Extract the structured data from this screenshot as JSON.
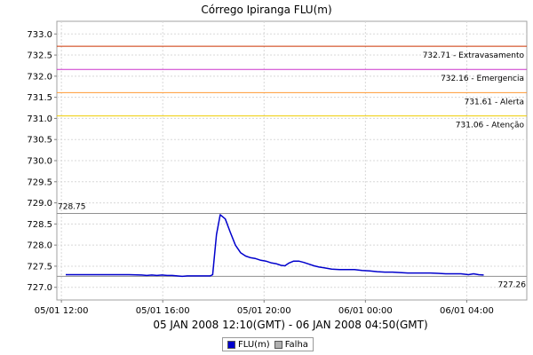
{
  "chart_data": {
    "type": "line",
    "title": "Córrego Ipiranga FLU(m)",
    "subtitle": "05 JAN 2008 12:10(GMT) - 06 JAN 2008 04:50(GMT)",
    "ylim": [
      726.7,
      733.3
    ],
    "y_ticks": [
      "727.0",
      "727.5",
      "728.0",
      "728.5",
      "729.0",
      "729.5",
      "730.0",
      "730.5",
      "731.0",
      "731.5",
      "732.0",
      "732.5",
      "733.0"
    ],
    "x_ticks": [
      {
        "hours": -0.17,
        "label": "05/01 12:00"
      },
      {
        "hours": 3.83,
        "label": "05/01 16:00"
      },
      {
        "hours": 7.83,
        "label": "05/01 20:00"
      },
      {
        "hours": 11.83,
        "label": "06/01 00:00"
      },
      {
        "hours": 15.83,
        "label": "06/01 04:00"
      }
    ],
    "x_unit": "hours after 05 JAN 2008 12:10 GMT",
    "thresholds": [
      {
        "value": 732.71,
        "label": "732.71 - Extravasamento",
        "color": "#cc3300"
      },
      {
        "value": 732.16,
        "label": "732.16 - Emergencia",
        "color": "#cc33cc"
      },
      {
        "value": 731.61,
        "label": "731.61 - Alerta",
        "color": "#ff9933"
      },
      {
        "value": 731.06,
        "label": "731.06 - Atenção",
        "color": "#eecc00"
      }
    ],
    "markers": [
      {
        "value": 728.75,
        "label": "728.75",
        "side": "left"
      },
      {
        "value": 727.26,
        "label": "727.26",
        "side": "right"
      }
    ],
    "series": [
      {
        "name": "FLU(m)",
        "color": "#0000cc",
        "points": [
          [
            0.0,
            727.3
          ],
          [
            0.5,
            727.3
          ],
          [
            1.0,
            727.3
          ],
          [
            1.5,
            727.3
          ],
          [
            2.0,
            727.3
          ],
          [
            2.5,
            727.3
          ],
          [
            3.0,
            727.29
          ],
          [
            3.2,
            727.28
          ],
          [
            3.4,
            727.29
          ],
          [
            3.6,
            727.28
          ],
          [
            3.8,
            727.29
          ],
          [
            4.0,
            727.28
          ],
          [
            4.2,
            727.28
          ],
          [
            4.4,
            727.27
          ],
          [
            4.6,
            727.26
          ],
          [
            4.8,
            727.27
          ],
          [
            5.0,
            727.27
          ],
          [
            5.2,
            727.27
          ],
          [
            5.5,
            727.27
          ],
          [
            5.7,
            727.27
          ],
          [
            5.8,
            727.3
          ],
          [
            5.95,
            728.25
          ],
          [
            6.1,
            728.72
          ],
          [
            6.3,
            728.62
          ],
          [
            6.5,
            728.3
          ],
          [
            6.7,
            728.0
          ],
          [
            6.9,
            727.82
          ],
          [
            7.1,
            727.74
          ],
          [
            7.3,
            727.7
          ],
          [
            7.5,
            727.68
          ],
          [
            7.7,
            727.64
          ],
          [
            7.9,
            727.62
          ],
          [
            8.1,
            727.58
          ],
          [
            8.3,
            727.56
          ],
          [
            8.5,
            727.52
          ],
          [
            8.65,
            727.51
          ],
          [
            8.8,
            727.57
          ],
          [
            9.0,
            727.62
          ],
          [
            9.2,
            727.62
          ],
          [
            9.4,
            727.59
          ],
          [
            9.6,
            727.55
          ],
          [
            9.8,
            727.51
          ],
          [
            10.0,
            727.48
          ],
          [
            10.2,
            727.46
          ],
          [
            10.5,
            727.43
          ],
          [
            10.8,
            727.42
          ],
          [
            11.1,
            727.42
          ],
          [
            11.4,
            727.42
          ],
          [
            11.7,
            727.4
          ],
          [
            12.0,
            727.39
          ],
          [
            12.3,
            727.37
          ],
          [
            12.6,
            727.36
          ],
          [
            12.9,
            727.36
          ],
          [
            13.2,
            727.35
          ],
          [
            13.5,
            727.34
          ],
          [
            13.8,
            727.34
          ],
          [
            14.1,
            727.34
          ],
          [
            14.4,
            727.34
          ],
          [
            14.7,
            727.33
          ],
          [
            15.0,
            727.32
          ],
          [
            15.3,
            727.32
          ],
          [
            15.6,
            727.32
          ],
          [
            15.9,
            727.3
          ],
          [
            16.1,
            727.32
          ],
          [
            16.3,
            727.3
          ],
          [
            16.5,
            727.29
          ]
        ]
      }
    ],
    "legend": {
      "placement": "bottom",
      "items": [
        {
          "name": "FLU(m)",
          "color": "#0000cc"
        },
        {
          "name": "Falha",
          "color": "#b0b0b0"
        }
      ]
    },
    "grid": true
  }
}
